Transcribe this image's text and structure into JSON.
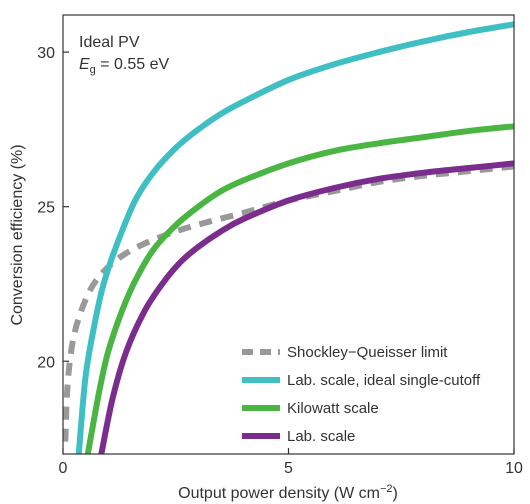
{
  "chart_data": {
    "type": "line",
    "xlabel": "Output power density (W cm",
    "xlabel_unit_exp": "−2",
    "xlabel_close": ")",
    "ylabel": "Conversion efficiency (%)",
    "xlim": [
      0,
      10
    ],
    "ylim": [
      17,
      31.2
    ],
    "xticks": [
      0,
      5,
      10
    ],
    "yticks": [
      20,
      25,
      30
    ],
    "grid": false,
    "legend_position": "bottom-right",
    "annotation": {
      "line1": "Ideal PV",
      "eg_symbol": "E",
      "eg_sub": "g",
      "eg_value": " = 0.55 eV"
    },
    "series": [
      {
        "name": "Shockley−Queisser limit",
        "color": "#999999",
        "dashed": true,
        "points": [
          [
            0.05,
            17.4
          ],
          [
            0.1,
            19.2
          ],
          [
            0.2,
            20.5
          ],
          [
            0.35,
            21.4
          ],
          [
            0.6,
            22.3
          ],
          [
            0.9,
            22.9
          ],
          [
            1.3,
            23.4
          ],
          [
            1.8,
            23.8
          ],
          [
            2.5,
            24.2
          ],
          [
            3.2,
            24.5
          ],
          [
            4,
            24.8
          ],
          [
            5,
            25.2
          ],
          [
            6,
            25.5
          ],
          [
            7,
            25.8
          ],
          [
            8,
            26.0
          ],
          [
            9,
            26.15
          ],
          [
            10,
            26.3
          ]
        ]
      },
      {
        "name": "Lab. scale, ideal single-cutoff",
        "color": "#3fbfc3",
        "dashed": false,
        "points": [
          [
            0.35,
            17.0
          ],
          [
            0.5,
            19.5
          ],
          [
            0.7,
            21.2
          ],
          [
            0.9,
            22.5
          ],
          [
            1.2,
            23.8
          ],
          [
            1.6,
            25.2
          ],
          [
            2,
            26.1
          ],
          [
            2.5,
            26.9
          ],
          [
            3,
            27.5
          ],
          [
            3.5,
            28.0
          ],
          [
            4,
            28.4
          ],
          [
            5,
            29.1
          ],
          [
            6,
            29.6
          ],
          [
            7,
            30.0
          ],
          [
            8,
            30.35
          ],
          [
            9,
            30.65
          ],
          [
            10,
            30.9
          ]
        ]
      },
      {
        "name": "Kilowatt scale",
        "color": "#4bb543",
        "dashed": false,
        "points": [
          [
            0.55,
            17.0
          ],
          [
            0.8,
            19.0
          ],
          [
            1.0,
            20.3
          ],
          [
            1.3,
            21.6
          ],
          [
            1.6,
            22.6
          ],
          [
            2,
            23.6
          ],
          [
            2.5,
            24.4
          ],
          [
            3,
            25.0
          ],
          [
            3.5,
            25.5
          ],
          [
            4,
            25.85
          ],
          [
            5,
            26.4
          ],
          [
            6,
            26.8
          ],
          [
            7,
            27.05
          ],
          [
            8,
            27.25
          ],
          [
            9,
            27.45
          ],
          [
            10,
            27.6
          ]
        ]
      },
      {
        "name": "Lab. scale",
        "color": "#7b2d8e",
        "dashed": false,
        "points": [
          [
            0.85,
            17.0
          ],
          [
            1.1,
            18.8
          ],
          [
            1.4,
            20.3
          ],
          [
            1.8,
            21.6
          ],
          [
            2.2,
            22.5
          ],
          [
            2.6,
            23.2
          ],
          [
            3,
            23.7
          ],
          [
            3.5,
            24.2
          ],
          [
            4,
            24.6
          ],
          [
            5,
            25.2
          ],
          [
            6,
            25.6
          ],
          [
            7,
            25.9
          ],
          [
            8,
            26.1
          ],
          [
            9,
            26.25
          ],
          [
            10,
            26.4
          ]
        ]
      }
    ]
  }
}
